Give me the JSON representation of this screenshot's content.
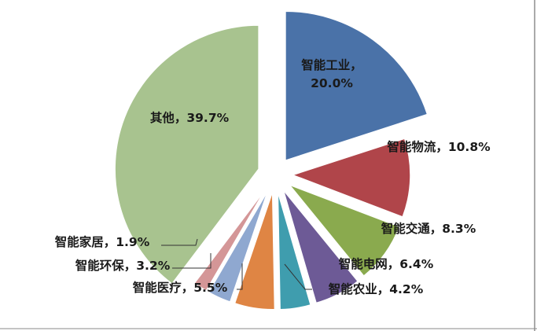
{
  "chart_data": {
    "type": "pie",
    "title": "",
    "legend": "none",
    "slices": [
      {
        "name": "智能工业",
        "value": 20.0,
        "label": "智能工业，20.0%",
        "color": "#4a72a8"
      },
      {
        "name": "智能物流",
        "value": 10.8,
        "label": "智能物流，10.8%",
        "color": "#b0454a"
      },
      {
        "name": "智能交通",
        "value": 8.3,
        "label": "智能交通，8.3%",
        "color": "#8aaa4e"
      },
      {
        "name": "智能电网",
        "value": 6.4,
        "label": "智能电网，6.4%",
        "color": "#6d5a96"
      },
      {
        "name": "智能农业",
        "value": 4.2,
        "label": "智能农业，4.2%",
        "color": "#3f9dae"
      },
      {
        "name": "智能医疗",
        "value": 5.5,
        "label": "智能医疗，5.5%",
        "color": "#df8544"
      },
      {
        "name": "智能环保",
        "value": 3.2,
        "label": "智能环保，3.2%",
        "color": "#8fa8d0"
      },
      {
        "name": "智能家居",
        "value": 1.9,
        "label": "智能家居，1.9%",
        "color": "#d49697"
      },
      {
        "name": "其他",
        "value": 39.7,
        "label": "其他，39.7%",
        "color": "#a8c38f"
      }
    ]
  }
}
